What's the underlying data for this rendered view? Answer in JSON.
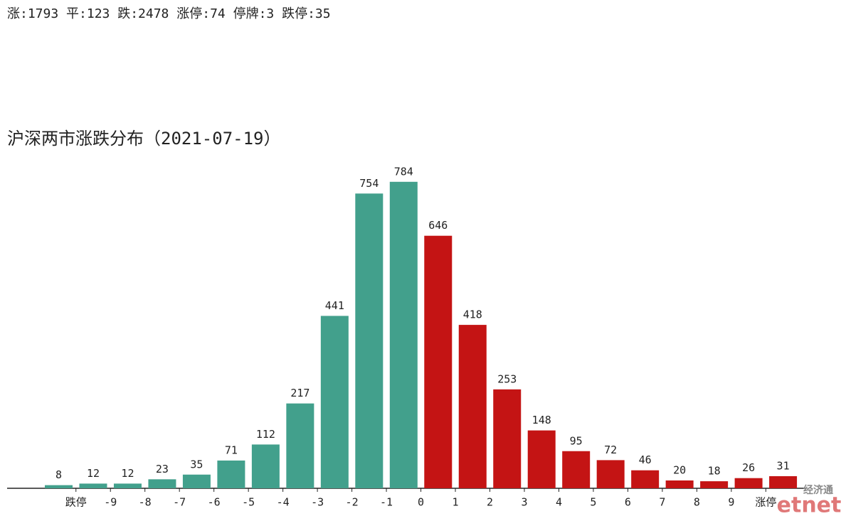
{
  "summary": "涨:1793 平:123 跌:2478 涨停:74 停牌:3 跌停:35",
  "watermark": {
    "top": "经济通",
    "bottom": "etnet"
  },
  "chart_data": {
    "type": "bar",
    "title": "沪深两市涨跌分布（2021-07-19）",
    "edge_labels": [
      "跌停",
      "-9",
      "-8",
      "-7",
      "-6",
      "-5",
      "-4",
      "-3",
      "-2",
      "-1",
      "0",
      "1",
      "2",
      "3",
      "4",
      "5",
      "6",
      "7",
      "8",
      "9",
      "涨停"
    ],
    "values": [
      8,
      12,
      12,
      23,
      35,
      71,
      112,
      217,
      441,
      754,
      784,
      646,
      418,
      253,
      148,
      95,
      72,
      46,
      20,
      18,
      26,
      31
    ],
    "colors": [
      "#42a08c",
      "#42a08c",
      "#42a08c",
      "#42a08c",
      "#42a08c",
      "#42a08c",
      "#42a08c",
      "#42a08c",
      "#42a08c",
      "#42a08c",
      "#42a08c",
      "#c41414",
      "#c41414",
      "#c41414",
      "#c41414",
      "#c41414",
      "#c41414",
      "#c41414",
      "#c41414",
      "#c41414",
      "#c41414",
      "#c41414"
    ],
    "ylim": [
      0,
      800
    ]
  }
}
